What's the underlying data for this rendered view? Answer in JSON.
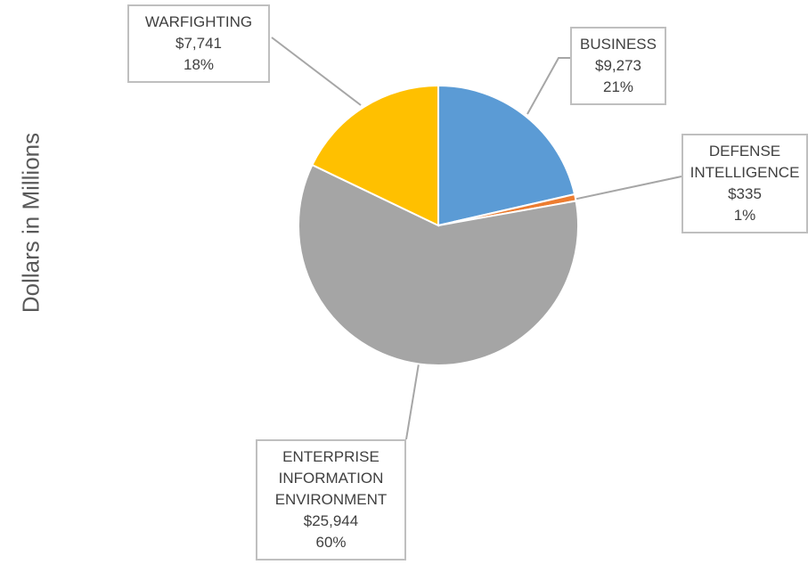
{
  "chart_data": {
    "type": "pie",
    "y_label": "Dollars in Millions",
    "categories": [
      "BUSINESS",
      "DEFENSE INTELLIGENCE",
      "ENTERPRISE INFORMATION ENVIRONMENT",
      "WARFIGHTING"
    ],
    "values": [
      9273,
      335,
      25944,
      7741
    ],
    "value_labels": [
      "$9,273",
      "$335",
      "$25,944",
      "$7,741"
    ],
    "percentages": [
      21,
      1,
      60,
      18
    ],
    "percentage_labels": [
      "21%",
      "1%",
      "60%",
      "18%"
    ],
    "colors": [
      "#5b9bd5",
      "#ed7d31",
      "#a5a5a5",
      "#ffc000"
    ]
  }
}
